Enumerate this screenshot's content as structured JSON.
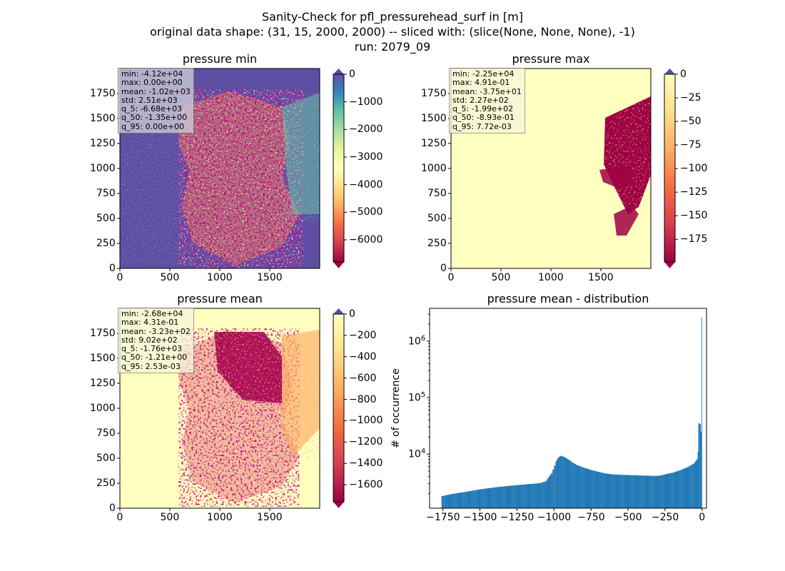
{
  "figure": {
    "title_lines": [
      "Sanity-Check for pfl_pressurehead_surf in [m]",
      "original data shape: (31, 15, 2000, 2000) -- sliced with: (slice(None, None, None), -1)",
      "run: 2079_09"
    ]
  },
  "chart_data": [
    {
      "type": "heatmap",
      "title": "pressure min",
      "colormap": "Spectral",
      "xlim": [
        0,
        2000
      ],
      "ylim": [
        0,
        2000
      ],
      "xticks": [
        0,
        500,
        1000,
        1500
      ],
      "yticks": [
        0,
        250,
        500,
        750,
        1000,
        1250,
        1500,
        1750
      ],
      "colorbar": {
        "range": [
          -6800,
          0
        ],
        "ticks": [
          0,
          -1000,
          -2000,
          -3000,
          -4000,
          -5000,
          -6000
        ],
        "extend": "both"
      },
      "stats": [
        "min: -4.12e+04",
        "max: 0.00e+00",
        "mean: -1.02e+03",
        "std: 2.51e+03",
        "q_5: -6.68e+03",
        "q_50: -1.35e+00",
        "q_95: 0.00e+00"
      ]
    },
    {
      "type": "heatmap",
      "title": "pressure max",
      "colormap": "Spectral",
      "xlim": [
        0,
        2000
      ],
      "ylim": [
        0,
        2000
      ],
      "xticks": [
        0,
        500,
        1000,
        1500
      ],
      "yticks": [
        0,
        250,
        500,
        750,
        1000,
        1250,
        1500,
        1750
      ],
      "colorbar": {
        "range": [
          -199,
          0
        ],
        "ticks": [
          0,
          -25,
          -50,
          -75,
          -100,
          -125,
          -150,
          -175
        ],
        "extend": "both"
      },
      "stats": [
        "min: -2.25e+04",
        "max: 4.91e-01",
        "mean: -3.75e+01",
        "std: 2.27e+02",
        "q_5: -1.99e+02",
        "q_50: -8.93e-01",
        "q_95: 7.72e-03"
      ]
    },
    {
      "type": "heatmap",
      "title": "pressure mean",
      "colormap": "Spectral",
      "xlim": [
        0,
        2000
      ],
      "ylim": [
        0,
        2000
      ],
      "xticks": [
        0,
        500,
        1000,
        1500
      ],
      "yticks": [
        0,
        250,
        500,
        750,
        1000,
        1250,
        1500,
        1750
      ],
      "colorbar": {
        "range": [
          -1760,
          0
        ],
        "ticks": [
          0,
          -200,
          -400,
          -600,
          -800,
          -1000,
          -1200,
          -1400,
          -1600
        ],
        "extend": "both"
      },
      "stats": [
        "min: -2.68e+04",
        "max: 4.31e-01",
        "mean: -3.23e+02",
        "std: 9.02e+02",
        "q_5: -1.76e+03",
        "q_50: -1.21e+00",
        "q_95: 2.53e-03"
      ]
    },
    {
      "type": "bar",
      "title": "pressure mean - distribution",
      "ylabel": "# of occurrence",
      "yscale": "log",
      "xlim": [
        -1840,
        30
      ],
      "ylim": [
        1100,
        3800000
      ],
      "xticks": [
        -1750,
        -1500,
        -1250,
        -1000,
        -750,
        -500,
        -250,
        0
      ],
      "xtick_labels": [
        "−1750",
        "−1500",
        "−1250",
        "−1000",
        "−750",
        "−500",
        "−250",
        "0"
      ],
      "yticks": [
        10000,
        100000,
        1000000
      ],
      "color": "#1f77b4",
      "bins": [
        [
          -1760,
          1800
        ],
        [
          -1700,
          1950
        ],
        [
          -1600,
          2150
        ],
        [
          -1500,
          2380
        ],
        [
          -1400,
          2580
        ],
        [
          -1300,
          2750
        ],
        [
          -1200,
          2900
        ],
        [
          -1100,
          3050
        ],
        [
          -1060,
          3300
        ],
        [
          -1040,
          3900
        ],
        [
          -1020,
          4600
        ],
        [
          -1000,
          6200
        ],
        [
          -990,
          7400
        ],
        [
          -975,
          8600
        ],
        [
          -960,
          9300
        ],
        [
          -940,
          9000
        ],
        [
          -920,
          8400
        ],
        [
          -900,
          7800
        ],
        [
          -880,
          7100
        ],
        [
          -850,
          6400
        ],
        [
          -800,
          5700
        ],
        [
          -750,
          5200
        ],
        [
          -700,
          4800
        ],
        [
          -650,
          4500
        ],
        [
          -600,
          4350
        ],
        [
          -500,
          4250
        ],
        [
          -400,
          4150
        ],
        [
          -300,
          4100
        ],
        [
          -250,
          4400
        ],
        [
          -200,
          4700
        ],
        [
          -150,
          5200
        ],
        [
          -100,
          5900
        ],
        [
          -60,
          6800
        ],
        [
          -40,
          8000
        ],
        [
          -30,
          11000
        ],
        [
          -25,
          35000
        ],
        [
          -15,
          34000
        ],
        [
          -8,
          25000
        ],
        [
          -3,
          2600000
        ],
        [
          1,
          2600000
        ]
      ]
    }
  ]
}
